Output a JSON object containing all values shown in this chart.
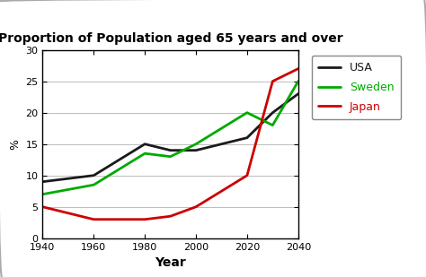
{
  "title": "Proportion of Population aged 65 years and over",
  "xlabel": "Year",
  "ylabel": "%",
  "xlim": [
    1940,
    2040
  ],
  "ylim": [
    0,
    30
  ],
  "yticks": [
    0,
    5,
    10,
    15,
    20,
    25,
    30
  ],
  "xticks": [
    1940,
    1960,
    1980,
    2000,
    2020,
    2040
  ],
  "series": {
    "USA": {
      "x": [
        1940,
        1960,
        1980,
        1990,
        2000,
        2020,
        2030,
        2040
      ],
      "y": [
        9,
        10,
        15,
        14,
        14,
        16,
        20,
        23
      ],
      "color": "#1a1a1a",
      "linewidth": 2.0
    },
    "Sweden": {
      "x": [
        1940,
        1960,
        1980,
        1990,
        2000,
        2020,
        2030,
        2040
      ],
      "y": [
        7,
        8.5,
        13.5,
        13,
        15,
        20,
        18,
        25
      ],
      "color": "#00aa00",
      "linewidth": 2.0
    },
    "Japan": {
      "x": [
        1940,
        1960,
        1980,
        1990,
        2000,
        2020,
        2030,
        2040
      ],
      "y": [
        5,
        3,
        3,
        3.5,
        5,
        10,
        25,
        27
      ],
      "color": "#cc0000",
      "linewidth": 2.0
    }
  },
  "legend_colors": {
    "USA": "#1a1a1a",
    "Sweden": "#00aa00",
    "Japan": "#cc0000"
  },
  "background_color": "#ffffff",
  "outer_border_color": "#cccccc",
  "grid_color": "#bbbbbb",
  "title_fontsize": 10,
  "xlabel_fontsize": 10,
  "ylabel_fontsize": 9,
  "tick_fontsize": 8,
  "legend_fontsize": 9
}
